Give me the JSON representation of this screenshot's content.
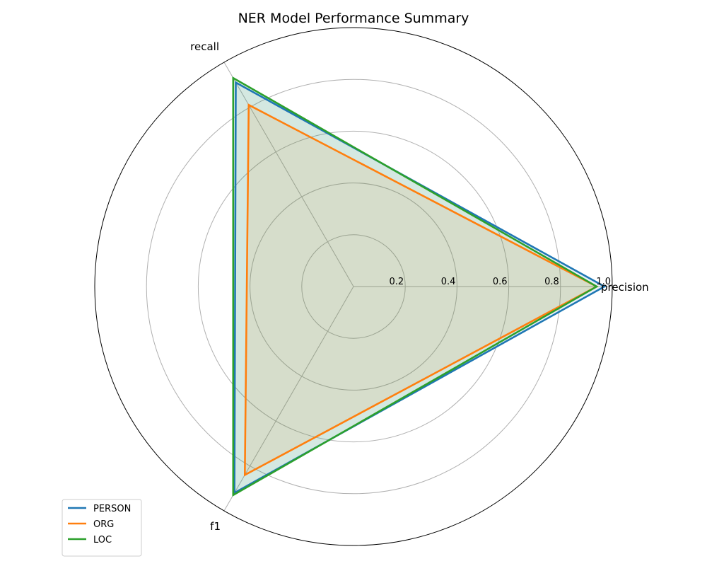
{
  "chart_data": {
    "type": "radar",
    "title": "NER Model Performance Summary",
    "axes": [
      "precision",
      "recall",
      "f1"
    ],
    "rlim": [
      0,
      1
    ],
    "rticks": [
      0.2,
      0.4,
      0.6,
      0.8,
      1.0
    ],
    "rtick_labels": [
      "0.2",
      "0.4",
      "0.6",
      "0.8",
      "1.0"
    ],
    "grid": true,
    "legend_position": "lower-left",
    "series": [
      {
        "name": "PERSON",
        "values": [
          0.97,
          0.91,
          0.92
        ],
        "color": "#1f77b4"
      },
      {
        "name": "ORG",
        "values": [
          0.94,
          0.81,
          0.84
        ],
        "color": "#ff7f0e"
      },
      {
        "name": "LOC",
        "values": [
          0.94,
          0.93,
          0.93
        ],
        "color": "#2ca02c"
      }
    ]
  }
}
